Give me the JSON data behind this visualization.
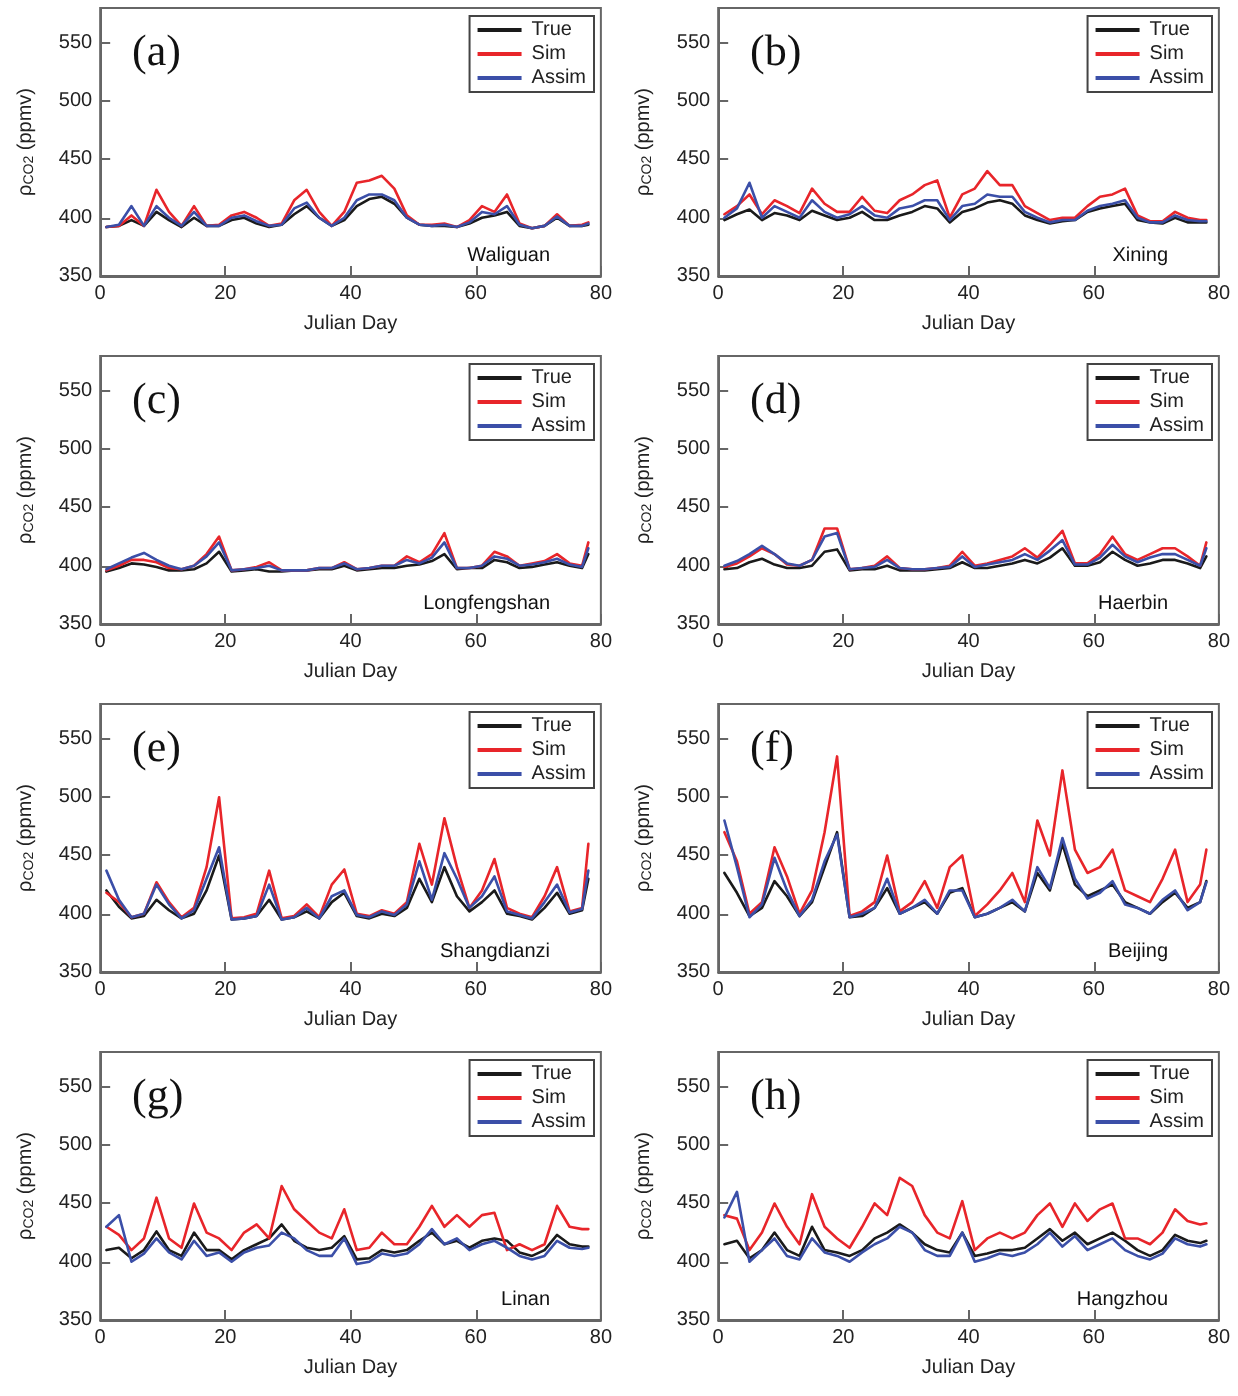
{
  "chart_data": [
    {
      "type": "line",
      "xlabel": "Julian Day",
      "ylabel": "ρ$_{CO2}$ (ppmv)",
      "annotations": [
        "(a)",
        "Waliguan"
      ],
      "xlim": [
        0,
        80
      ],
      "ylim": [
        350,
        580
      ],
      "xticks": [
        0,
        20,
        40,
        60,
        80
      ],
      "yticks": [
        350,
        400,
        450,
        500,
        550
      ],
      "grid": false,
      "legend": "top right",
      "marker": "none",
      "line_style": "solid",
      "x": [
        1,
        3,
        5,
        7,
        9,
        11,
        13,
        15,
        17,
        19,
        21,
        23,
        25,
        27,
        29,
        31,
        33,
        35,
        37,
        39,
        41,
        43,
        45,
        47,
        49,
        51,
        53,
        55,
        57,
        59,
        61,
        63,
        65,
        67,
        69,
        71,
        73,
        75,
        77,
        78
      ],
      "series": [
        {
          "name": "True",
          "color": "#1a1a1a",
          "values": [
            392,
            393,
            398,
            393,
            405,
            398,
            392,
            400,
            393,
            393,
            398,
            400,
            395,
            392,
            394,
            403,
            410,
            400,
            393,
            398,
            410,
            416,
            418,
            412,
            400,
            394,
            393,
            393,
            392,
            395,
            400,
            402,
            405,
            393,
            391,
            393,
            400,
            393,
            393,
            394
          ]
        },
        {
          "name": "Sim",
          "color": "#e8252a",
          "values": [
            392,
            393,
            402,
            393,
            424,
            405,
            393,
            410,
            393,
            394,
            402,
            405,
            400,
            393,
            395,
            415,
            424,
            405,
            393,
            405,
            430,
            432,
            436,
            425,
            402,
            394,
            394,
            395,
            392,
            398,
            410,
            405,
            420,
            395,
            391,
            393,
            403,
            393,
            394,
            396
          ]
        },
        {
          "name": "Assim",
          "color": "#3b4fa8",
          "values": [
            392,
            394,
            410,
            393,
            410,
            400,
            393,
            405,
            393,
            393,
            400,
            402,
            397,
            393,
            394,
            408,
            413,
            400,
            393,
            400,
            415,
            420,
            420,
            415,
            400,
            394,
            393,
            394,
            392,
            396,
            405,
            403,
            410,
            394,
            391,
            393,
            401,
            393,
            393,
            395
          ]
        }
      ]
    },
    {
      "type": "line",
      "xlabel": "Julian Day",
      "ylabel": "ρ$_{CO2}$ (ppmv)",
      "annotations": [
        "(b)",
        "Xining"
      ],
      "xlim": [
        0,
        80
      ],
      "ylim": [
        350,
        580
      ],
      "xticks": [
        0,
        20,
        40,
        60,
        80
      ],
      "yticks": [
        350,
        400,
        450,
        500,
        550
      ],
      "grid": false,
      "legend": "top right",
      "marker": "none",
      "line_style": "solid",
      "x": [
        1,
        3,
        5,
        7,
        9,
        11,
        13,
        15,
        17,
        19,
        21,
        23,
        25,
        27,
        29,
        31,
        33,
        35,
        37,
        39,
        41,
        43,
        45,
        47,
        49,
        51,
        53,
        55,
        57,
        59,
        61,
        63,
        65,
        67,
        69,
        71,
        73,
        75,
        77,
        78
      ],
      "series": [
        {
          "name": "True",
          "color": "#1a1a1a",
          "values": [
            398,
            403,
            407,
            398,
            404,
            402,
            398,
            406,
            402,
            398,
            400,
            405,
            398,
            398,
            402,
            405,
            410,
            408,
            396,
            405,
            408,
            413,
            415,
            412,
            402,
            398,
            395,
            397,
            398,
            405,
            408,
            410,
            412,
            398,
            396,
            395,
            400,
            396,
            396,
            396
          ]
        },
        {
          "name": "Sim",
          "color": "#e8252a",
          "values": [
            403,
            410,
            420,
            403,
            415,
            410,
            404,
            425,
            412,
            405,
            405,
            418,
            406,
            404,
            415,
            420,
            428,
            432,
            400,
            420,
            425,
            440,
            428,
            428,
            410,
            404,
            398,
            400,
            400,
            410,
            418,
            420,
            425,
            402,
            397,
            397,
            405,
            400,
            398,
            398
          ]
        },
        {
          "name": "Assim",
          "color": "#3b4fa8",
          "values": [
            400,
            408,
            430,
            400,
            410,
            405,
            400,
            415,
            405,
            400,
            403,
            410,
            402,
            400,
            408,
            410,
            415,
            415,
            398,
            410,
            412,
            420,
            418,
            418,
            405,
            400,
            396,
            398,
            398,
            406,
            410,
            412,
            415,
            400,
            396,
            396,
            402,
            398,
            397,
            397
          ]
        }
      ]
    },
    {
      "type": "line",
      "xlabel": "Julian Day",
      "ylabel": "ρ$_{CO2}$ (ppmv)",
      "annotations": [
        "(c)",
        "Longfengshan"
      ],
      "xlim": [
        0,
        80
      ],
      "ylim": [
        350,
        580
      ],
      "xticks": [
        0,
        20,
        40,
        60,
        80
      ],
      "yticks": [
        350,
        400,
        450,
        500,
        550
      ],
      "grid": false,
      "legend": "top right",
      "marker": "none",
      "line_style": "solid",
      "x": [
        1,
        3,
        5,
        7,
        9,
        11,
        13,
        15,
        17,
        19,
        21,
        23,
        25,
        27,
        29,
        31,
        33,
        35,
        37,
        39,
        41,
        43,
        45,
        47,
        49,
        51,
        53,
        55,
        57,
        59,
        61,
        63,
        65,
        67,
        69,
        71,
        73,
        75,
        77,
        78
      ],
      "series": [
        {
          "name": "True",
          "color": "#1a1a1a",
          "values": [
            395,
            398,
            402,
            401,
            399,
            396,
            396,
            397,
            402,
            412,
            395,
            396,
            397,
            395,
            395,
            396,
            396,
            397,
            397,
            400,
            396,
            397,
            398,
            398,
            400,
            401,
            404,
            410,
            397,
            398,
            398,
            405,
            403,
            398,
            399,
            401,
            403,
            400,
            398,
            410
          ]
        },
        {
          "name": "Sim",
          "color": "#e8252a",
          "values": [
            396,
            400,
            405,
            405,
            403,
            398,
            397,
            400,
            410,
            425,
            396,
            397,
            399,
            403,
            396,
            396,
            396,
            398,
            398,
            403,
            397,
            398,
            400,
            400,
            408,
            403,
            410,
            428,
            398,
            398,
            400,
            412,
            408,
            400,
            402,
            404,
            410,
            402,
            400,
            420
          ]
        },
        {
          "name": "Assim",
          "color": "#3b4fa8",
          "values": [
            397,
            402,
            407,
            411,
            405,
            400,
            397,
            400,
            408,
            420,
            396,
            397,
            398,
            400,
            396,
            396,
            396,
            398,
            398,
            402,
            397,
            398,
            400,
            400,
            405,
            402,
            407,
            420,
            398,
            398,
            400,
            408,
            406,
            400,
            401,
            403,
            406,
            401,
            399,
            415
          ]
        }
      ]
    },
    {
      "type": "line",
      "xlabel": "Julian Day",
      "ylabel": "ρ$_{CO2}$ (ppmv)",
      "annotations": [
        "(d)",
        "Haerbin"
      ],
      "xlim": [
        0,
        80
      ],
      "ylim": [
        350,
        580
      ],
      "xticks": [
        0,
        20,
        40,
        60,
        80
      ],
      "yticks": [
        350,
        400,
        450,
        500,
        550
      ],
      "grid": false,
      "legend": "top right",
      "marker": "none",
      "line_style": "solid",
      "x": [
        1,
        3,
        5,
        7,
        9,
        11,
        13,
        15,
        17,
        19,
        21,
        23,
        25,
        27,
        29,
        31,
        33,
        35,
        37,
        39,
        41,
        43,
        45,
        47,
        49,
        51,
        53,
        55,
        57,
        59,
        61,
        63,
        65,
        67,
        69,
        71,
        73,
        75,
        77,
        78
      ],
      "series": [
        {
          "name": "True",
          "color": "#1a1a1a",
          "values": [
            397,
            398,
            403,
            406,
            401,
            398,
            398,
            400,
            412,
            414,
            396,
            397,
            397,
            400,
            396,
            396,
            396,
            397,
            398,
            403,
            398,
            398,
            400,
            402,
            405,
            402,
            407,
            415,
            400,
            400,
            403,
            412,
            405,
            400,
            402,
            405,
            405,
            402,
            398,
            408
          ]
        },
        {
          "name": "Sim",
          "color": "#e8252a",
          "values": [
            399,
            402,
            408,
            415,
            410,
            401,
            400,
            405,
            432,
            432,
            397,
            398,
            400,
            408,
            398,
            397,
            397,
            398,
            400,
            412,
            400,
            402,
            405,
            408,
            415,
            407,
            418,
            430,
            402,
            402,
            410,
            425,
            410,
            405,
            410,
            415,
            415,
            408,
            400,
            420
          ]
        },
        {
          "name": "Assim",
          "color": "#3b4fa8",
          "values": [
            400,
            404,
            410,
            417,
            410,
            402,
            400,
            405,
            425,
            428,
            397,
            398,
            399,
            405,
            398,
            397,
            397,
            398,
            399,
            408,
            399,
            401,
            403,
            405,
            410,
            405,
            413,
            422,
            401,
            401,
            407,
            418,
            408,
            403,
            407,
            410,
            410,
            405,
            400,
            415
          ]
        }
      ]
    },
    {
      "type": "line",
      "xlabel": "Julian Day",
      "ylabel": "ρ$_{CO2}$ (ppmv)",
      "annotations": [
        "(e)",
        "Shangdianzi"
      ],
      "xlim": [
        0,
        80
      ],
      "ylim": [
        350,
        580
      ],
      "xticks": [
        0,
        20,
        40,
        60,
        80
      ],
      "yticks": [
        350,
        400,
        450,
        500,
        550
      ],
      "grid": false,
      "legend": "top right",
      "marker": "none",
      "line_style": "solid",
      "x": [
        1,
        3,
        5,
        7,
        9,
        11,
        13,
        15,
        17,
        19,
        21,
        23,
        25,
        27,
        29,
        31,
        33,
        35,
        37,
        39,
        41,
        43,
        45,
        47,
        49,
        51,
        53,
        55,
        57,
        59,
        61,
        63,
        65,
        67,
        69,
        71,
        73,
        75,
        77,
        78
      ],
      "series": [
        {
          "name": "True",
          "color": "#1a1a1a",
          "values": [
            420,
            406,
            396,
            398,
            412,
            403,
            396,
            400,
            420,
            450,
            395,
            396,
            398,
            412,
            395,
            397,
            402,
            396,
            410,
            418,
            398,
            396,
            400,
            398,
            405,
            430,
            410,
            440,
            415,
            402,
            410,
            420,
            400,
            398,
            395,
            405,
            418,
            400,
            403,
            430
          ]
        },
        {
          "name": "Sim",
          "color": "#e8252a",
          "values": [
            418,
            410,
            397,
            400,
            427,
            410,
            397,
            405,
            440,
            500,
            396,
            397,
            400,
            437,
            396,
            398,
            408,
            397,
            425,
            438,
            400,
            398,
            403,
            400,
            410,
            460,
            425,
            482,
            440,
            405,
            420,
            447,
            405,
            400,
            397,
            415,
            440,
            402,
            405,
            460
          ]
        },
        {
          "name": "Assim",
          "color": "#3b4fa8",
          "values": [
            437,
            412,
            397,
            400,
            425,
            408,
            396,
            403,
            430,
            457,
            395,
            396,
            398,
            425,
            395,
            397,
            405,
            396,
            415,
            420,
            399,
            397,
            402,
            399,
            408,
            445,
            412,
            452,
            430,
            405,
            415,
            432,
            402,
            399,
            396,
            410,
            425,
            401,
            404,
            437
          ]
        }
      ]
    },
    {
      "type": "line",
      "xlabel": "Julian Day",
      "ylabel": "ρ$_{CO2}$ (ppmv)",
      "annotations": [
        "(f)",
        "Beijing"
      ],
      "xlim": [
        0,
        80
      ],
      "ylim": [
        350,
        580
      ],
      "xticks": [
        0,
        20,
        40,
        60,
        80
      ],
      "yticks": [
        350,
        400,
        450,
        500,
        550
      ],
      "grid": false,
      "legend": "top right",
      "marker": "none",
      "line_style": "solid",
      "x": [
        1,
        3,
        5,
        7,
        9,
        11,
        13,
        15,
        17,
        19,
        21,
        23,
        25,
        27,
        29,
        31,
        33,
        35,
        37,
        39,
        41,
        43,
        45,
        47,
        49,
        51,
        53,
        55,
        57,
        59,
        61,
        63,
        65,
        67,
        69,
        71,
        73,
        75,
        77,
        78
      ],
      "series": [
        {
          "name": "True",
          "color": "#1a1a1a",
          "values": [
            435,
            418,
            398,
            405,
            428,
            415,
            398,
            410,
            440,
            470,
            397,
            398,
            405,
            422,
            400,
            405,
            410,
            400,
            418,
            422,
            397,
            400,
            405,
            410,
            402,
            435,
            420,
            460,
            425,
            415,
            420,
            425,
            410,
            405,
            400,
            410,
            418,
            405,
            410,
            428
          ]
        },
        {
          "name": "Sim",
          "color": "#e8252a",
          "values": [
            470,
            445,
            400,
            410,
            457,
            432,
            400,
            420,
            470,
            535,
            398,
            402,
            410,
            450,
            402,
            410,
            428,
            405,
            440,
            450,
            398,
            408,
            420,
            435,
            410,
            480,
            450,
            523,
            455,
            435,
            440,
            455,
            420,
            415,
            410,
            430,
            455,
            410,
            425,
            455
          ]
        },
        {
          "name": "Assim",
          "color": "#3b4fa8",
          "values": [
            480,
            440,
            397,
            408,
            448,
            420,
            398,
            412,
            445,
            468,
            397,
            400,
            405,
            430,
            400,
            405,
            412,
            400,
            420,
            420,
            397,
            400,
            405,
            412,
            402,
            440,
            422,
            465,
            430,
            413,
            418,
            428,
            408,
            405,
            400,
            412,
            420,
            403,
            410,
            427
          ]
        }
      ]
    },
    {
      "type": "line",
      "xlabel": "Julian Day",
      "ylabel": "ρ$_{CO2}$ (ppmv)",
      "annotations": [
        "(g)",
        "Linan"
      ],
      "xlim": [
        0,
        80
      ],
      "ylim": [
        350,
        580
      ],
      "xticks": [
        0,
        20,
        40,
        60,
        80
      ],
      "yticks": [
        350,
        400,
        450,
        500,
        550
      ],
      "grid": false,
      "legend": "top right",
      "marker": "none",
      "line_style": "solid",
      "x": [
        1,
        3,
        5,
        7,
        9,
        11,
        13,
        15,
        17,
        19,
        21,
        23,
        25,
        27,
        29,
        31,
        33,
        35,
        37,
        39,
        41,
        43,
        45,
        47,
        49,
        51,
        53,
        55,
        57,
        59,
        61,
        63,
        65,
        67,
        69,
        71,
        73,
        75,
        77,
        78
      ],
      "series": [
        {
          "name": "True",
          "color": "#1a1a1a",
          "values": [
            410,
            412,
            403,
            410,
            426,
            410,
            405,
            425,
            410,
            410,
            402,
            410,
            415,
            420,
            432,
            418,
            412,
            410,
            412,
            422,
            402,
            403,
            410,
            408,
            410,
            418,
            425,
            415,
            418,
            412,
            418,
            420,
            418,
            408,
            405,
            410,
            423,
            415,
            413,
            413
          ]
        },
        {
          "name": "Sim",
          "color": "#e8252a",
          "values": [
            430,
            423,
            410,
            420,
            455,
            420,
            412,
            450,
            425,
            420,
            410,
            425,
            432,
            420,
            465,
            445,
            435,
            425,
            420,
            445,
            410,
            412,
            425,
            415,
            415,
            430,
            448,
            430,
            440,
            430,
            440,
            442,
            410,
            415,
            410,
            415,
            448,
            430,
            428,
            428
          ]
        },
        {
          "name": "Assim",
          "color": "#3b4fa8",
          "values": [
            430,
            440,
            400,
            407,
            420,
            408,
            402,
            418,
            405,
            408,
            400,
            408,
            412,
            414,
            425,
            420,
            410,
            405,
            405,
            420,
            398,
            400,
            407,
            405,
            407,
            415,
            428,
            415,
            420,
            410,
            415,
            418,
            412,
            405,
            402,
            405,
            418,
            412,
            411,
            412
          ]
        }
      ]
    },
    {
      "type": "line",
      "xlabel": "Julian Day",
      "ylabel": "ρ$_{CO2}$ (ppmv)",
      "annotations": [
        "(h)",
        "Hangzhou"
      ],
      "xlim": [
        0,
        80
      ],
      "ylim": [
        350,
        580
      ],
      "xticks": [
        0,
        20,
        40,
        60,
        80
      ],
      "yticks": [
        350,
        400,
        450,
        500,
        550
      ],
      "grid": false,
      "legend": "top right",
      "marker": "none",
      "line_style": "solid",
      "x": [
        1,
        3,
        5,
        7,
        9,
        11,
        13,
        15,
        17,
        19,
        21,
        23,
        25,
        27,
        29,
        31,
        33,
        35,
        37,
        39,
        41,
        43,
        45,
        47,
        49,
        51,
        53,
        55,
        57,
        59,
        61,
        63,
        65,
        67,
        69,
        71,
        73,
        75,
        77,
        78
      ],
      "series": [
        {
          "name": "True",
          "color": "#1a1a1a",
          "values": [
            415,
            418,
            403,
            410,
            425,
            410,
            405,
            430,
            410,
            408,
            405,
            410,
            420,
            425,
            432,
            425,
            415,
            410,
            408,
            425,
            405,
            407,
            410,
            410,
            412,
            420,
            428,
            418,
            425,
            415,
            420,
            425,
            418,
            410,
            405,
            410,
            423,
            418,
            416,
            418
          ]
        },
        {
          "name": "Sim",
          "color": "#e8252a",
          "values": [
            440,
            437,
            410,
            425,
            450,
            430,
            415,
            458,
            430,
            420,
            412,
            430,
            450,
            440,
            472,
            465,
            440,
            425,
            420,
            452,
            410,
            420,
            425,
            420,
            425,
            440,
            450,
            430,
            450,
            435,
            445,
            450,
            420,
            420,
            415,
            425,
            445,
            435,
            432,
            433
          ]
        },
        {
          "name": "Assim",
          "color": "#3b4fa8",
          "values": [
            438,
            460,
            400,
            410,
            420,
            405,
            402,
            420,
            408,
            405,
            400,
            408,
            415,
            420,
            430,
            425,
            410,
            405,
            405,
            425,
            400,
            403,
            407,
            405,
            408,
            415,
            425,
            413,
            422,
            410,
            415,
            420,
            410,
            405,
            402,
            407,
            420,
            415,
            413,
            415
          ]
        }
      ]
    }
  ]
}
